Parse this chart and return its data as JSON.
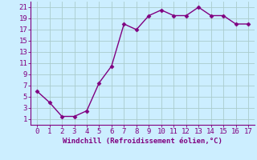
{
  "x": [
    0,
    1,
    2,
    3,
    4,
    5,
    6,
    7,
    8,
    9,
    10,
    11,
    12,
    13,
    14,
    15,
    16,
    17
  ],
  "y": [
    6,
    4,
    1.5,
    1.5,
    2.5,
    7.5,
    10.5,
    18,
    17,
    19.5,
    20.5,
    19.5,
    19.5,
    21,
    19.5,
    19.5,
    18,
    18
  ],
  "line_color": "#800080",
  "marker": "D",
  "marker_size": 2.5,
  "line_width": 1.0,
  "background_color": "#cceeff",
  "grid_color": "#aacccc",
  "xlabel": "Windchill (Refroidissement éolien,°C)",
  "xlabel_color": "#800080",
  "xlabel_fontsize": 6.5,
  "ytick_values": [
    1,
    3,
    5,
    7,
    9,
    11,
    13,
    15,
    17,
    19,
    21
  ],
  "ylim": [
    0,
    22
  ],
  "xlim": [
    -0.5,
    17.5
  ],
  "tick_color": "#800080",
  "tick_fontsize": 6.5,
  "axis_color": "#800080"
}
